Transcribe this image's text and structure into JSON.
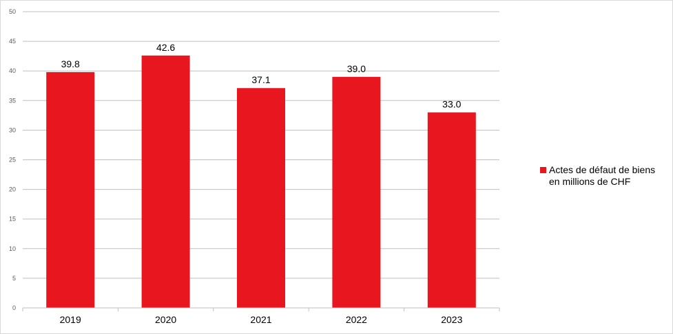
{
  "chart_data": {
    "type": "bar",
    "categories": [
      "2019",
      "2020",
      "2021",
      "2022",
      "2023"
    ],
    "series": [
      {
        "name": "Actes de défaut de biens en millions de CHF",
        "values": [
          39.8,
          42.6,
          37.1,
          39.0,
          33.0
        ],
        "data_labels": [
          "39.8",
          "42.6",
          "37.1",
          "39.0",
          "33.0"
        ],
        "color": "#e8161f"
      }
    ],
    "ylim": [
      0,
      50
    ],
    "yticks": [
      "0",
      "5",
      "10",
      "15",
      "20",
      "25",
      "30",
      "35",
      "40",
      "45",
      "50"
    ],
    "grid": true,
    "legend_position": "right"
  },
  "legend": {
    "line1": "Actes de défaut de biens",
    "line2": "en millions de CHF"
  }
}
